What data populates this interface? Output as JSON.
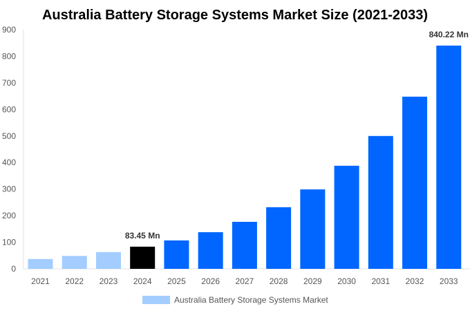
{
  "chart_data": {
    "type": "bar",
    "title": "Australia Battery Storage Systems Market Size (2021-2033)",
    "categories": [
      "2021",
      "2022",
      "2023",
      "2024",
      "2025",
      "2026",
      "2027",
      "2028",
      "2029",
      "2030",
      "2031",
      "2032",
      "2033"
    ],
    "series": [
      {
        "name": "Australia Battery Storage Systems Market",
        "values": [
          37,
          48.6,
          63,
          83.45,
          107,
          138,
          177,
          232,
          299,
          388,
          500,
          648,
          840.22
        ]
      }
    ],
    "bar_colors": [
      "#a3cdff",
      "#a3cdff",
      "#a3cdff",
      "#000000",
      "#0066ff",
      "#0066ff",
      "#0066ff",
      "#0066ff",
      "#0066ff",
      "#0066ff",
      "#0066ff",
      "#0066ff",
      "#0066ff"
    ],
    "data_labels": [
      {
        "index": 3,
        "text": "83.45 Mn"
      },
      {
        "index": 12,
        "text": "840.22 Mn"
      }
    ],
    "yticks": [
      0,
      100,
      200,
      300,
      400,
      500,
      600,
      700,
      800,
      900
    ],
    "ylim": [
      0,
      900
    ],
    "grid": false,
    "legend_position": "bottom",
    "legend_color": "#a3cdff"
  }
}
